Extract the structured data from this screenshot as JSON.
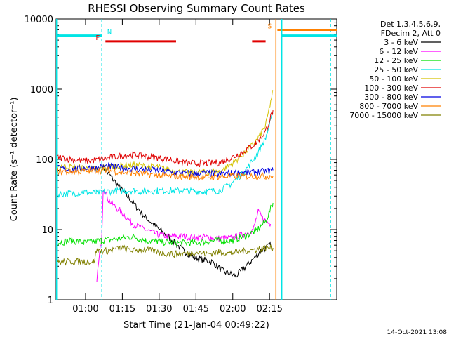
{
  "chart_data": {
    "type": "line",
    "title": "RHESSI Observing Summary Count Rates",
    "xlabel": "Start Time (21-Jan-04 00:49:22)",
    "ylabel": "Count Rate (s⁻¹ detector⁻¹)",
    "yscale": "log",
    "ylim": [
      1,
      10000
    ],
    "xlim_minutes": [
      -1.4,
      113.0
    ],
    "y_ticks": [
      "1",
      "10",
      "100",
      "1000",
      "10000"
    ],
    "x_ticks": [
      {
        "label": "01:00",
        "minute": 10.6
      },
      {
        "label": "01:15",
        "minute": 25.6
      },
      {
        "label": "01:30",
        "minute": 40.6
      },
      {
        "label": "01:45",
        "minute": 55.6
      },
      {
        "label": "02:00",
        "minute": 70.6
      },
      {
        "label": "02:15",
        "minute": 85.6
      }
    ],
    "legend_header": [
      "Det 1,3,4,5,6,9,",
      "FDecim 2, Att 0"
    ],
    "legend_position": "right",
    "timestamp": "14-Oct-2021 13:08",
    "flags": [
      {
        "label": "N",
        "color": "#00e5e5",
        "level": 5800,
        "intervals": [
          [
            -1.4,
            17.2
          ],
          [
            90.6,
            113.0
          ]
        ],
        "dashed_marks": [
          17.2,
          110.5
        ]
      },
      {
        "label": "F",
        "color": "#e00000",
        "level": 4800,
        "intervals": [
          [
            18.7,
            47.5
          ],
          [
            78.5,
            84.0
          ]
        ]
      },
      {
        "label": "S",
        "color": "#ff8000",
        "level": 7000,
        "intervals": [
          [
            88.8,
            113.0
          ]
        ]
      }
    ],
    "series": [
      {
        "name": "3 - 6 keV",
        "color": "#000000",
        "points": [
          [
            17.5,
            80
          ],
          [
            20,
            62
          ],
          [
            25,
            38
          ],
          [
            30,
            24
          ],
          [
            35,
            15
          ],
          [
            40,
            10.5
          ],
          [
            45,
            7.5
          ],
          [
            50,
            5.2
          ],
          [
            55,
            4
          ],
          [
            62,
            3.5
          ],
          [
            67,
            2.5
          ],
          [
            72,
            2.2
          ],
          [
            78,
            3.5
          ],
          [
            82,
            5
          ],
          [
            86,
            6
          ]
        ]
      },
      {
        "name": "6 - 12 keV",
        "color": "#ff00ff",
        "points": [
          [
            15.2,
            2
          ],
          [
            17.2,
            8
          ],
          [
            17.8,
            40
          ],
          [
            20,
            26
          ],
          [
            25,
            18
          ],
          [
            30,
            12
          ],
          [
            35,
            10
          ],
          [
            40,
            8.5
          ],
          [
            45,
            8
          ],
          [
            50,
            8
          ],
          [
            55,
            7.8
          ],
          [
            60,
            7.8
          ],
          [
            65,
            7.5
          ],
          [
            70,
            7.6
          ],
          [
            75,
            8.5
          ],
          [
            79,
            10
          ],
          [
            81,
            18
          ],
          [
            83,
            14
          ],
          [
            86,
            12
          ]
        ]
      },
      {
        "name": "12 - 25 keV",
        "color": "#00e000",
        "points": [
          [
            -1,
            6.5
          ],
          [
            5,
            7
          ],
          [
            10,
            6.5
          ],
          [
            17,
            7
          ],
          [
            25,
            7.5
          ],
          [
            30,
            8
          ],
          [
            35,
            7
          ],
          [
            40,
            6.8
          ],
          [
            45,
            6.5
          ],
          [
            50,
            6.5
          ],
          [
            55,
            6.5
          ],
          [
            60,
            6.8
          ],
          [
            65,
            7
          ],
          [
            70,
            7
          ],
          [
            75,
            8
          ],
          [
            80,
            9.5
          ],
          [
            84,
            13
          ],
          [
            87,
            24
          ]
        ]
      },
      {
        "name": "25 - 50 keV",
        "color": "#00e5e5",
        "points": [
          [
            -1,
            32
          ],
          [
            5,
            33
          ],
          [
            10,
            34
          ],
          [
            15,
            33
          ],
          [
            20,
            35
          ],
          [
            25,
            36
          ],
          [
            30,
            36
          ],
          [
            35,
            35
          ],
          [
            40,
            36
          ],
          [
            45,
            36
          ],
          [
            50,
            36
          ],
          [
            55,
            35
          ],
          [
            60,
            35
          ],
          [
            65,
            36
          ],
          [
            70,
            45
          ],
          [
            75,
            65
          ],
          [
            80,
            110
          ],
          [
            84,
            200
          ],
          [
            87,
            450
          ]
        ]
      },
      {
        "name": "50 - 100 keV",
        "color": "#d4c200",
        "points": [
          [
            -1,
            82
          ],
          [
            5,
            78
          ],
          [
            10,
            75
          ],
          [
            15,
            72
          ],
          [
            20,
            78
          ],
          [
            25,
            82
          ],
          [
            30,
            84
          ],
          [
            35,
            80
          ],
          [
            40,
            78
          ],
          [
            45,
            70
          ],
          [
            50,
            65
          ],
          [
            55,
            65
          ],
          [
            60,
            66
          ],
          [
            65,
            67
          ],
          [
            70,
            85
          ],
          [
            75,
            120
          ],
          [
            80,
            180
          ],
          [
            84,
            300
          ],
          [
            87,
            950
          ]
        ]
      },
      {
        "name": "100 - 300 keV",
        "color": "#e00000",
        "points": [
          [
            -1,
            108
          ],
          [
            5,
            100
          ],
          [
            10,
            95
          ],
          [
            15,
            98
          ],
          [
            20,
            105
          ],
          [
            25,
            112
          ],
          [
            30,
            118
          ],
          [
            35,
            112
          ],
          [
            40,
            105
          ],
          [
            45,
            100
          ],
          [
            50,
            90
          ],
          [
            55,
            88
          ],
          [
            60,
            88
          ],
          [
            65,
            90
          ],
          [
            70,
            105
          ],
          [
            75,
            130
          ],
          [
            80,
            170
          ],
          [
            84,
            250
          ],
          [
            87,
            500
          ]
        ]
      },
      {
        "name": "300 - 800 keV",
        "color": "#0000e0",
        "points": [
          [
            -1,
            75
          ],
          [
            5,
            72
          ],
          [
            10,
            75
          ],
          [
            15,
            76
          ],
          [
            20,
            80
          ],
          [
            25,
            76
          ],
          [
            30,
            74
          ],
          [
            35,
            72
          ],
          [
            40,
            70
          ],
          [
            45,
            66
          ],
          [
            50,
            64
          ],
          [
            55,
            63
          ],
          [
            60,
            64
          ],
          [
            65,
            62
          ],
          [
            70,
            64
          ],
          [
            75,
            65
          ],
          [
            80,
            66
          ],
          [
            84,
            68
          ],
          [
            87,
            70
          ]
        ]
      },
      {
        "name": "800 - 7000 keV",
        "color": "#ff8000",
        "points": [
          [
            -1,
            68
          ],
          [
            5,
            66
          ],
          [
            10,
            68
          ],
          [
            15,
            70
          ],
          [
            20,
            70
          ],
          [
            25,
            66
          ],
          [
            30,
            64
          ],
          [
            35,
            62
          ],
          [
            40,
            60
          ],
          [
            45,
            58
          ],
          [
            50,
            57
          ],
          [
            55,
            56
          ],
          [
            60,
            56
          ],
          [
            65,
            57
          ],
          [
            70,
            58
          ],
          [
            75,
            58
          ],
          [
            80,
            58
          ],
          [
            84,
            58
          ],
          [
            87,
            58
          ]
        ]
      },
      {
        "name": "7000 - 15000 keV",
        "color": "#808000",
        "points": [
          [
            -1,
            3.5
          ],
          [
            5,
            3.5
          ],
          [
            10,
            3.5
          ],
          [
            14,
            3.5
          ],
          [
            15,
            5
          ],
          [
            20,
            5
          ],
          [
            25,
            5.5
          ],
          [
            30,
            5
          ],
          [
            35,
            5.2
          ],
          [
            40,
            4.8
          ],
          [
            45,
            4.5
          ],
          [
            50,
            4.5
          ],
          [
            55,
            4.8
          ],
          [
            60,
            4.5
          ],
          [
            65,
            4.8
          ],
          [
            70,
            4.6
          ],
          [
            75,
            5
          ],
          [
            80,
            5.2
          ],
          [
            84,
            5.5
          ],
          [
            87,
            5.5
          ]
        ]
      }
    ]
  }
}
